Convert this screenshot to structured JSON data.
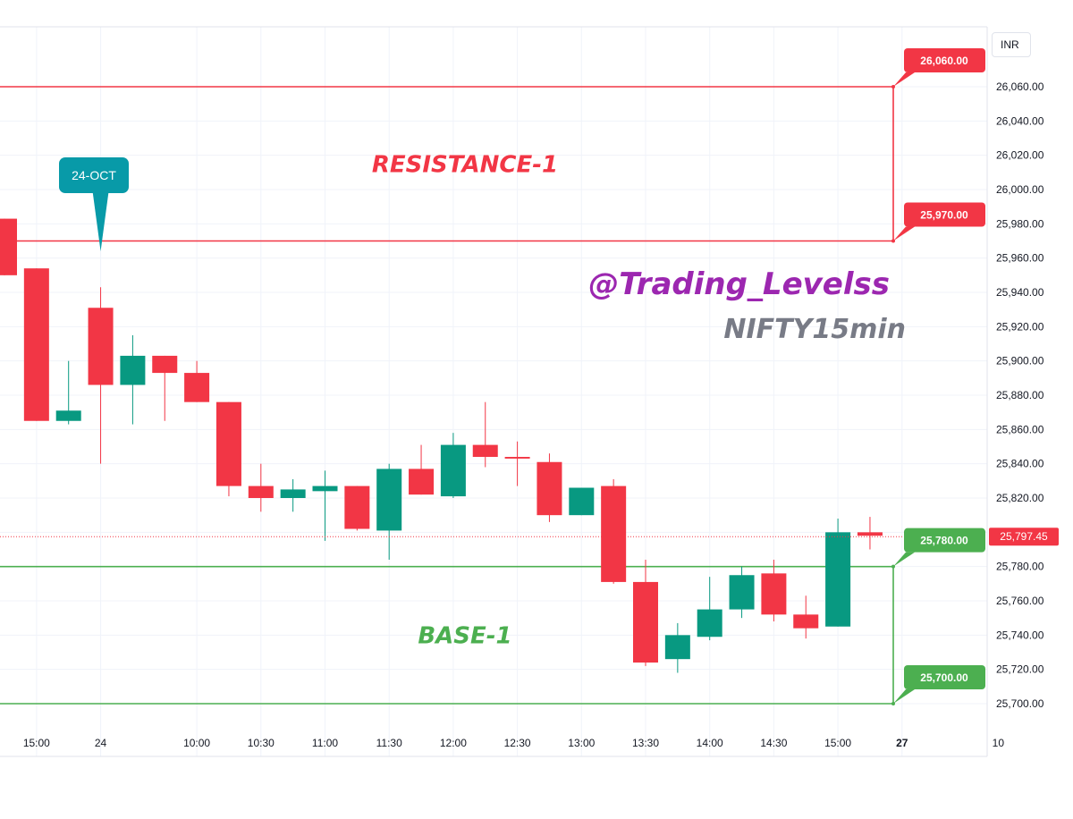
{
  "currency": "INR",
  "chart_data": {
    "type": "candlestick",
    "symbol_watermark": "NIFTY15min",
    "handle_watermark": "@Trading_Levelss",
    "ylim": [
      25690,
      26080
    ],
    "y_ticks": [
      25700,
      25720,
      25740,
      25760,
      25780,
      25800,
      25820,
      25840,
      25860,
      25880,
      25900,
      25920,
      25940,
      25960,
      25980,
      26000,
      26020,
      26040,
      26060
    ],
    "y_tick_labels": [
      "25,700.00",
      "25,720.00",
      "25,740.00",
      "25,760.00",
      "25,780.00",
      "25,800.00",
      "25,820.00",
      "25,840.00",
      "25,860.00",
      "25,880.00",
      "25,900.00",
      "25,920.00",
      "25,940.00",
      "25,960.00",
      "25,980.00",
      "26,000.00",
      "26,020.00",
      "26,040.00",
      "26,060.00"
    ],
    "x_ticks": [
      {
        "label": "15:00",
        "slot": 1,
        "bold": false
      },
      {
        "label": "24",
        "slot": 3,
        "bold": false
      },
      {
        "label": "10:00",
        "slot": 6,
        "bold": false
      },
      {
        "label": "10:30",
        "slot": 8,
        "bold": false
      },
      {
        "label": "11:00",
        "slot": 10,
        "bold": false
      },
      {
        "label": "11:30",
        "slot": 12,
        "bold": false
      },
      {
        "label": "12:00",
        "slot": 14,
        "bold": false
      },
      {
        "label": "12:30",
        "slot": 16,
        "bold": false
      },
      {
        "label": "13:00",
        "slot": 18,
        "bold": false
      },
      {
        "label": "13:30",
        "slot": 20,
        "bold": false
      },
      {
        "label": "14:00",
        "slot": 22,
        "bold": false
      },
      {
        "label": "14:30",
        "slot": 24,
        "bold": false
      },
      {
        "label": "15:00",
        "slot": 26,
        "bold": false
      },
      {
        "label": "27",
        "slot": 28,
        "bold": true
      },
      {
        "label": "10",
        "slot": 31,
        "bold": false
      }
    ],
    "candles": [
      {
        "slot": 0,
        "open": 25983,
        "high": 25983,
        "low": 25950,
        "close": 25950
      },
      {
        "slot": 1,
        "open": 25954,
        "high": 25954,
        "low": 25865,
        "close": 25865
      },
      {
        "slot": 2,
        "open": 25865,
        "high": 25900,
        "low": 25863,
        "close": 25871
      },
      {
        "slot": 3,
        "open": 25931,
        "high": 25943,
        "low": 25840,
        "close": 25886
      },
      {
        "slot": 4,
        "open": 25886,
        "high": 25915,
        "low": 25863,
        "close": 25903
      },
      {
        "slot": 5,
        "open": 25903,
        "high": 25903,
        "low": 25865,
        "close": 25893
      },
      {
        "slot": 6,
        "open": 25893,
        "high": 25900,
        "low": 25876,
        "close": 25876
      },
      {
        "slot": 7,
        "open": 25876,
        "high": 25876,
        "low": 25821,
        "close": 25827
      },
      {
        "slot": 8,
        "open": 25827,
        "high": 25840,
        "low": 25812,
        "close": 25820
      },
      {
        "slot": 9,
        "open": 25820,
        "high": 25831,
        "low": 25812,
        "close": 25825
      },
      {
        "slot": 10,
        "open": 25824,
        "high": 25836,
        "low": 25795,
        "close": 25827
      },
      {
        "slot": 11,
        "open": 25827,
        "high": 25827,
        "low": 25801,
        "close": 25802
      },
      {
        "slot": 12,
        "open": 25801,
        "high": 25840,
        "low": 25784,
        "close": 25837
      },
      {
        "slot": 13,
        "open": 25837,
        "high": 25851,
        "low": 25822,
        "close": 25822
      },
      {
        "slot": 14,
        "open": 25821,
        "high": 25858,
        "low": 25820,
        "close": 25851
      },
      {
        "slot": 15,
        "open": 25851,
        "high": 25876,
        "low": 25838,
        "close": 25844
      },
      {
        "slot": 16,
        "open": 25844,
        "high": 25853,
        "low": 25827,
        "close": 25843
      },
      {
        "slot": 17,
        "open": 25841,
        "high": 25846,
        "low": 25806,
        "close": 25810
      },
      {
        "slot": 18,
        "open": 25810,
        "high": 25826,
        "low": 25810,
        "close": 25826
      },
      {
        "slot": 19,
        "open": 25827,
        "high": 25831,
        "low": 25770,
        "close": 25771
      },
      {
        "slot": 20,
        "open": 25771,
        "high": 25784,
        "low": 25722,
        "close": 25724
      },
      {
        "slot": 21,
        "open": 25726,
        "high": 25747,
        "low": 25718,
        "close": 25740
      },
      {
        "slot": 22,
        "open": 25739,
        "high": 25774,
        "low": 25737,
        "close": 25755
      },
      {
        "slot": 23,
        "open": 25755,
        "high": 25780,
        "low": 25750,
        "close": 25775
      },
      {
        "slot": 24,
        "open": 25776,
        "high": 25784,
        "low": 25748,
        "close": 25752
      },
      {
        "slot": 25,
        "open": 25752,
        "high": 25763,
        "low": 25738,
        "close": 25744
      },
      {
        "slot": 26,
        "open": 25745,
        "high": 25808,
        "low": 25745,
        "close": 25800
      },
      {
        "slot": 27,
        "open": 25800,
        "high": 25809,
        "low": 25790,
        "close": 25798
      }
    ],
    "last_price": 25797.45,
    "last_price_label": "25,797.45",
    "zones": [
      {
        "name": "RESISTANCE-1",
        "top": 26060,
        "bottom": 25970,
        "top_label": "26,060.00",
        "bottom_label": "25,970.00",
        "color": "#f23645"
      },
      {
        "name": "BASE-1",
        "top": 25780,
        "bottom": 25700,
        "top_label": "25,780.00",
        "bottom_label": "25,700.00",
        "color": "#4caf50"
      }
    ],
    "date_callout": {
      "label": "24-OCT",
      "slot": 3,
      "price": 25964,
      "color": "#089aa8"
    },
    "colors": {
      "up": "#089981",
      "down": "#f23645",
      "grid": "#f0f3fa",
      "axis_text": "#131722",
      "handle": "#9c27b0",
      "symbol": "#787b86"
    }
  }
}
